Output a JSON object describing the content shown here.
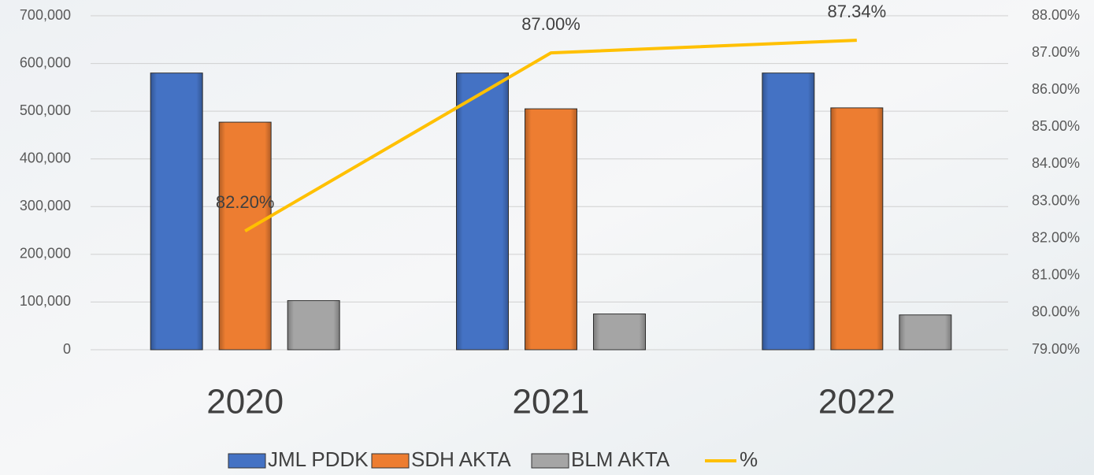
{
  "chart_data": {
    "type": "bar",
    "categories": [
      "2020",
      "2021",
      "2022"
    ],
    "series": [
      {
        "name": "JML PDDK",
        "color": "#4472c4",
        "values": [
          580000,
          580000,
          580000
        ]
      },
      {
        "name": "SDH AKTA",
        "color": "#ed7d31",
        "values": [
          477000,
          505000,
          507000
        ]
      },
      {
        "name": "BLM AKTA",
        "color": "#a5a5a5",
        "values": [
          103000,
          75000,
          73000
        ]
      },
      {
        "name": "%",
        "color": "#ffc000",
        "type": "line",
        "axis": "y2",
        "values": [
          82.2,
          87.0,
          87.34
        ],
        "value_labels": [
          "82.20%",
          "87.00%",
          "87.34%"
        ]
      }
    ],
    "ylim": [
      0,
      700000
    ],
    "yticks": [
      0,
      {
        "value": 100000,
        "label": "100,000"
      },
      {
        "value": 200000,
        "label": "200,000"
      },
      {
        "value": 300000,
        "label": "300,000"
      },
      {
        "value": 400000,
        "label": "400,000"
      },
      {
        "value": 500000,
        "label": "500,000"
      },
      {
        "value": 600000,
        "label": "600,000"
      },
      {
        "value": 700000,
        "label": "700,000"
      }
    ],
    "y2lim": [
      79,
      88
    ],
    "y2ticks": [
      {
        "value": 79,
        "label": "79.00%"
      },
      {
        "value": 80,
        "label": "80.00%"
      },
      {
        "value": 81,
        "label": "81.00%"
      },
      {
        "value": 82,
        "label": "82.00%"
      },
      {
        "value": 83,
        "label": "83.00%"
      },
      {
        "value": 84,
        "label": "84.00%"
      },
      {
        "value": 85,
        "label": "85.00%"
      },
      {
        "value": 86,
        "label": "86.00%"
      },
      {
        "value": 87,
        "label": "87.00%"
      },
      {
        "value": 88,
        "label": "88.00%"
      }
    ],
    "grid": true,
    "legend": "bottom"
  }
}
